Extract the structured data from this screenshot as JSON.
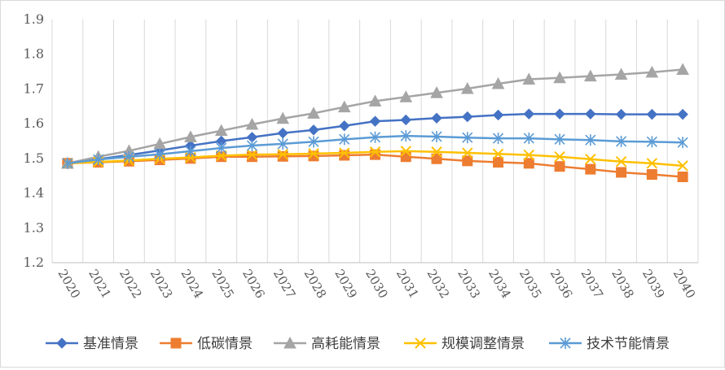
{
  "chart_data": {
    "type": "line",
    "title": "",
    "xlabel": "",
    "ylabel": "",
    "ylim": [
      1.2,
      1.9
    ],
    "yticks": [
      "1.2",
      "1.3",
      "1.4",
      "1.5",
      "1.6",
      "1.7",
      "1.8",
      "1.9"
    ],
    "grid": "vertical",
    "legend_position": "bottom",
    "categories": [
      "2020",
      "2021",
      "2022",
      "2023",
      "2024",
      "2025",
      "2026",
      "2027",
      "2028",
      "2029",
      "2030",
      "2031",
      "2032",
      "2033",
      "2034",
      "2035",
      "2036",
      "2037",
      "2038",
      "2039",
      "2040"
    ],
    "series": [
      {
        "name": "基准情景",
        "color": "#4472C4",
        "marker": "diamond",
        "values": [
          1.486,
          1.498,
          1.51,
          1.523,
          1.537,
          1.55,
          1.561,
          1.573,
          1.582,
          1.594,
          1.607,
          1.611,
          1.616,
          1.62,
          1.625,
          1.628,
          1.628,
          1.628,
          1.627,
          1.627,
          1.627
        ]
      },
      {
        "name": "低碳情景",
        "color": "#ED7D31",
        "marker": "square",
        "values": [
          1.486,
          1.489,
          1.492,
          1.496,
          1.5,
          1.505,
          1.505,
          1.506,
          1.507,
          1.509,
          1.511,
          1.505,
          1.499,
          1.493,
          1.489,
          1.486,
          1.477,
          1.469,
          1.46,
          1.454,
          1.447
        ]
      },
      {
        "name": "高耗能情景",
        "color": "#A5A5A5",
        "marker": "triangle",
        "values": [
          1.486,
          1.505,
          1.522,
          1.542,
          1.562,
          1.58,
          1.598,
          1.615,
          1.63,
          1.648,
          1.665,
          1.677,
          1.689,
          1.701,
          1.715,
          1.728,
          1.732,
          1.737,
          1.742,
          1.748,
          1.756
        ]
      },
      {
        "name": "规模调整情景",
        "color": "#FFC000",
        "marker": "x",
        "values": [
          1.486,
          1.49,
          1.494,
          1.499,
          1.503,
          1.508,
          1.511,
          1.512,
          1.514,
          1.516,
          1.519,
          1.521,
          1.519,
          1.516,
          1.513,
          1.51,
          1.505,
          1.498,
          1.491,
          1.486,
          1.479
        ]
      },
      {
        "name": "技术节能情景",
        "color": "#5B9BD5",
        "marker": "star",
        "values": [
          1.486,
          1.497,
          1.505,
          1.512,
          1.521,
          1.53,
          1.537,
          1.542,
          1.548,
          1.555,
          1.561,
          1.565,
          1.563,
          1.56,
          1.558,
          1.558,
          1.555,
          1.553,
          1.549,
          1.548,
          1.546
        ]
      }
    ]
  }
}
